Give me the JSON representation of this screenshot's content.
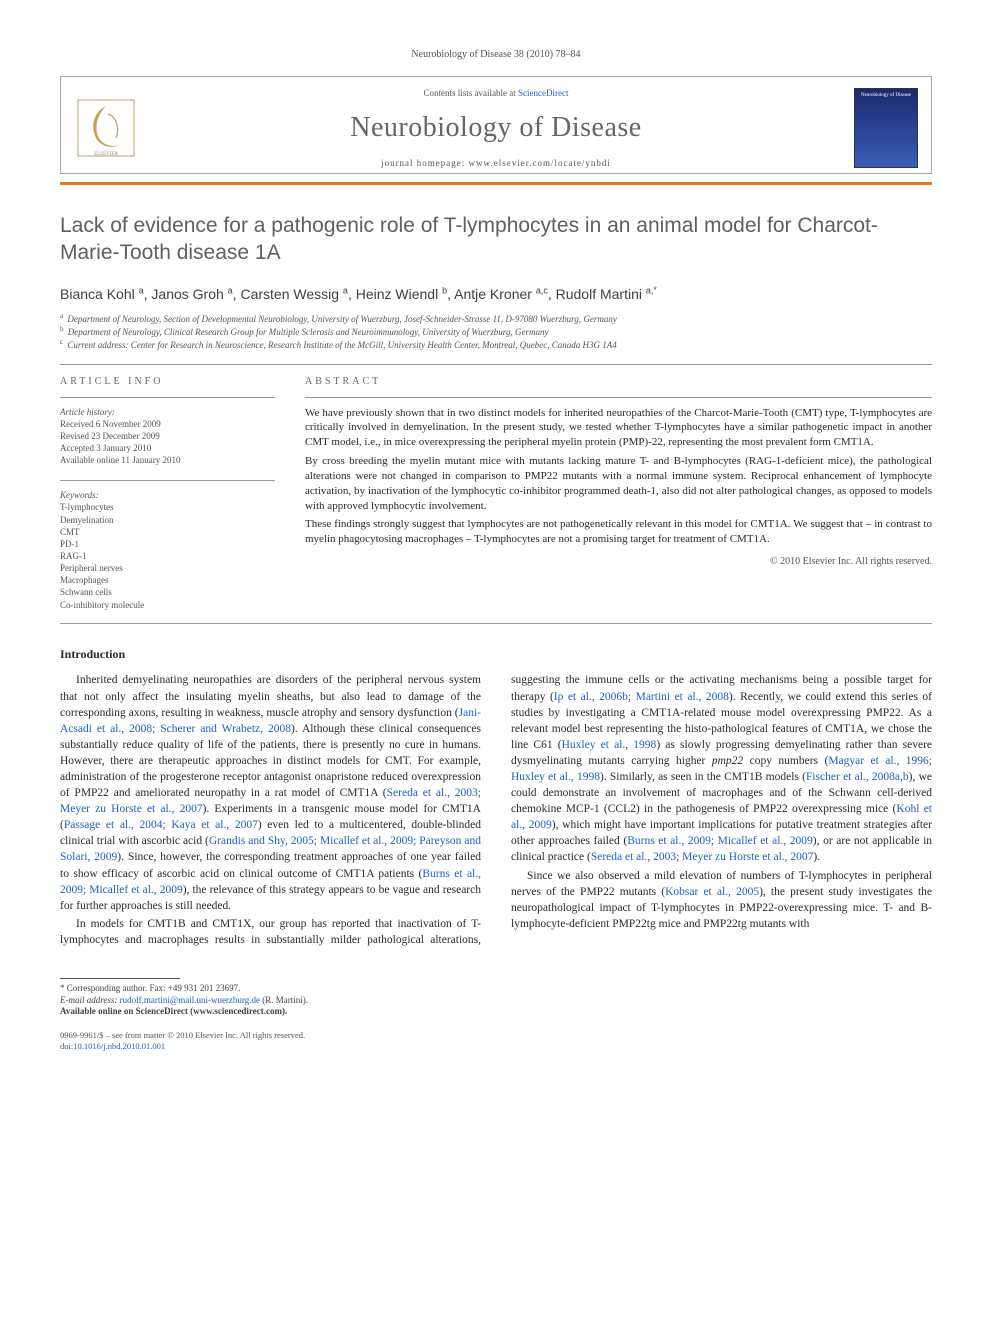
{
  "running_header": "Neurobiology of Disease 38 (2010) 78–84",
  "header": {
    "contents": "Contents lists available at ",
    "contents_link": "ScienceDirect",
    "journal": "Neurobiology of Disease",
    "homepage_label": "journal homepage: ",
    "homepage_url": "www.elsevier.com/locate/ynbdi",
    "cover_title": "Neurobiology of Disease"
  },
  "title": "Lack of evidence for a pathogenic role of T-lymphocytes in an animal model for Charcot-Marie-Tooth disease 1A",
  "authors_html": "Bianca Kohl <sup>a</sup>, Janos Groh <sup>a</sup>, Carsten Wessig <sup>a</sup>, Heinz Wiendl <sup>b</sup>, Antje Kroner <sup>a,c</sup>, Rudolf Martini <sup>a,</sup>",
  "corresponding_mark": "*",
  "affiliations": [
    "Department of Neurology, Section of Developmental Neurobiology, University of Wuerzburg, Josef-Schneider-Strasse 11, D-97080 Wuerzburg, Germany",
    "Department of Neurology, Clinical Research Group for Multiple Sclerosis and Neuroimmunology, University of Wuerzburg, Germany",
    "Current address: Center for Research in Neuroscience, Research Institute of the McGill, University Health Center, Montreal, Quebec, Canada H3G 1A4"
  ],
  "aff_markers": [
    "a",
    "b",
    "c"
  ],
  "info": {
    "heading": "ARTICLE INFO",
    "history_label": "Article history:",
    "history": [
      "Received 6 November 2009",
      "Revised 23 December 2009",
      "Accepted 3 January 2010",
      "Available online 11 January 2010"
    ],
    "keywords_label": "Keywords:",
    "keywords": [
      "T-lymphocytes",
      "Demyelination",
      "CMT",
      "PD-1",
      "RAG-1",
      "Peripheral nerves",
      "Macrophages",
      "Schwann cells",
      "Co-inhibitory molecule"
    ]
  },
  "abstract": {
    "heading": "ABSTRACT",
    "p1": "We have previously shown that in two distinct models for inherited neuropathies of the Charcot-Marie-Tooth (CMT) type, T-lymphocytes are critically involved in demyelination. In the present study, we tested whether T-lymphocytes have a similar pathogenetic impact in another CMT model, i.e., in mice overexpressing the peripheral myelin protein (PMP)-22, representing the most prevalent form CMT1A.",
    "p2": "By cross breeding the myelin mutant mice with mutants lacking mature T- and B-lymphocytes (RAG-1-deficient mice), the pathological alterations were not changed in comparison to PMP22 mutants with a normal immune system. Reciprocal enhancement of lymphocyte activation, by inactivation of the lymphocytic co-inhibitor programmed death-1, also did not alter pathological changes, as opposed to models with approved lymphocytic involvement.",
    "p3": "These findings strongly suggest that lymphocytes are not pathogenetically relevant in this model for CMT1A. We suggest that – in contrast to myelin phagocytosing macrophages – T-lymphocytes are not a promising target for treatment of CMT1A.",
    "copyright": "© 2010 Elsevier Inc. All rights reserved."
  },
  "section_title": "Introduction",
  "body": {
    "p1a": "Inherited demyelinating neuropathies are disorders of the peripheral nervous system that not only affect the insulating myelin sheaths, but also lead to damage of the corresponding axons, resulting in weakness, muscle atrophy and sensory dysfunction (",
    "p1_link1": "Jani-Acsadi et al., 2008; Scherer and Wrabetz, 2008",
    "p1b": "). Although these clinical consequences substantially reduce quality of life of the patients, there is presently no cure in humans. However, there are therapeutic approaches in distinct models for CMT. For example, administration of the progesterone receptor antagonist onapristone reduced overexpression of PMP22 and ameliorated neuropathy in a rat model of CMT1A (",
    "p1_link2": "Sereda et al., 2003; Meyer zu Horste et al., 2007",
    "p1c": "). Experiments in a transgenic mouse model for CMT1A (",
    "p1_link3": "Passage et al., 2004; Kaya et al., 2007",
    "p1d": ") even led to a multicentered, double-blinded clinical trial with ascorbic acid (",
    "p1_link4": "Grandis and Shy, 2005; Micallef et al., 2009; Pareyson and Solari, 2009",
    "p1e": "). Since, however, the corresponding treatment approaches of one year failed to show efficacy of ascorbic acid on clinical outcome of CMT1A patients (",
    "p1_link5": "Burns et al., 2009; Micallef et al., 2009",
    "p1f": "), the relevance of this strategy appears to be vague and research for further approaches is still needed.",
    "p2a": "In models for CMT1B and CMT1X, our group has reported that inactivation of T-lymphocytes and macrophages results in substantially milder pathological alterations, suggesting the immune cells or the activating mechanisms being a possible target for therapy (",
    "p2_link1": "Ip et al., 2006b; Martini et al., 2008",
    "p2b": "). Recently, we could extend this series of studies by investigating a CMT1A-related mouse model overexpressing PMP22. As a relevant model best representing the histo-pathological features of CMT1A, we chose the line C61 (",
    "p2_link2": "Huxley et al., 1998",
    "p2c": ") as slowly progressing demyelinating rather than severe dysmyelinating mutants carrying higher ",
    "p2_em": "pmp22",
    "p2d": " copy numbers (",
    "p2_link3": "Magyar et al., 1996; Huxley et al., 1998",
    "p2e": "). Similarly, as seen in the CMT1B models (",
    "p2_link4": "Fischer et al., 2008a,b",
    "p2f": "), we could demonstrate an involvement of macrophages and of the Schwann cell-derived chemokine MCP-1 (CCL2) in the pathogenesis of PMP22 overexpressing mice (",
    "p2_link5": "Kohl et al., 2009",
    "p2g": "), which might have important implications for putative treatment strategies after other approaches failed (",
    "p2_link6": "Burns et al., 2009; Micallef et al., 2009",
    "p2h": "), or are not applicable in clinical practice (",
    "p2_link7": "Sereda et al., 2003; Meyer zu Horste et al., 2007",
    "p2i": ").",
    "p3a": "Since we also observed a mild elevation of numbers of T-lymphocytes in peripheral nerves of the PMP22 mutants (",
    "p3_link1": "Kobsar et al., 2005",
    "p3b": "), the present study investigates the neuropathological impact of T-lymphocytes in PMP22-overexpressing mice. T- and B-lymphocyte-deficient PMP22tg mice and PMP22tg mutants with"
  },
  "footnote": {
    "corr_label": "* Corresponding author. Fax: +49 931 201 23697.",
    "email_label": "E-mail address: ",
    "email": "rudolf.martini@mail.uni-wuerzburg.de",
    "email_who": " (R. Martini).",
    "avail": "Available online on ScienceDirect (www.sciencedirect.com)."
  },
  "bottom": {
    "line1": "0969-9961/$ – see front matter © 2010 Elsevier Inc. All rights reserved.",
    "doi_label": "doi:",
    "doi": "10.1016/j.nbd.2010.01.001"
  },
  "colors": {
    "orange": "#e67a1f",
    "link": "#2060c0",
    "grey_text": "#606060"
  }
}
